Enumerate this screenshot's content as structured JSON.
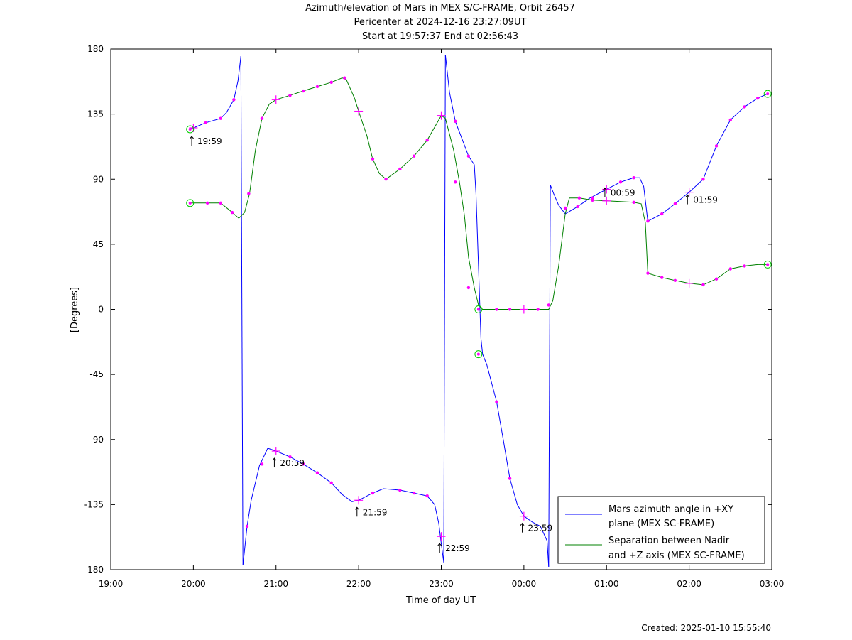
{
  "page": {
    "title_line1": "Azimuth/elevation of Mars in MEX S/C-FRAME,  Orbit 26457",
    "title_line2": "Pericenter at 2024-12-16 23:27:09UT",
    "title_line3": "Start at 19:57:37 End at 02:56:43",
    "created": "Created: 2025-01-10 15:55:40"
  },
  "chart_data": {
    "type": "line",
    "xlabel": "Time of day UT",
    "ylabel": "[Degrees]",
    "xlim_hours": [
      19,
      27
    ],
    "ylim": [
      -180,
      180
    ],
    "x_ticks": [
      "19:00",
      "20:00",
      "21:00",
      "22:00",
      "23:00",
      "00:00",
      "01:00",
      "02:00",
      "03:00"
    ],
    "y_ticks": [
      180,
      135,
      90,
      45,
      0,
      -45,
      -90,
      -135,
      -180
    ],
    "grid": false,
    "legend_position": "bottom-right",
    "colors": {
      "azimuth": "#0000ff",
      "separation": "#008000",
      "marker": "#ff00ff",
      "endpoint": "#00cc00"
    },
    "series": [
      {
        "name": "Mars azimuth angle in +XY plane (MEX SC-FRAME)",
        "legend_line1": "Mars azimuth angle in +XY",
        "legend_line2": "plane (MEX SC-FRAME)",
        "color": "#0000ff",
        "segments": [
          [
            [
              19.96,
              124.5
            ],
            [
              20.0,
              125.5
            ],
            [
              20.15,
              129
            ],
            [
              20.33,
              132
            ],
            [
              20.4,
              136
            ],
            [
              20.49,
              145
            ],
            [
              20.54,
              158
            ],
            [
              20.575,
              175
            ]
          ],
          [
            [
              20.6,
              -177
            ],
            [
              20.65,
              -150
            ],
            [
              20.7,
              -132
            ],
            [
              20.8,
              -108
            ],
            [
              20.9,
              -96
            ],
            [
              21.0,
              -98
            ],
            [
              21.17,
              -102
            ],
            [
              21.33,
              -107
            ],
            [
              21.5,
              -113
            ],
            [
              21.67,
              -120
            ],
            [
              21.8,
              -128
            ],
            [
              21.92,
              -133
            ],
            [
              22.0,
              -132
            ],
            [
              22.17,
              -127
            ],
            [
              22.3,
              -124
            ],
            [
              22.5,
              -125
            ],
            [
              22.67,
              -127
            ],
            [
              22.83,
              -129
            ],
            [
              22.92,
              -135
            ],
            [
              22.97,
              -148
            ],
            [
              23.0,
              -162
            ],
            [
              23.03,
              -175
            ]
          ],
          [
            [
              23.05,
              176
            ],
            [
              23.1,
              150
            ],
            [
              23.17,
              130
            ],
            [
              23.25,
              118
            ],
            [
              23.33,
              106
            ],
            [
              23.4,
              100
            ],
            [
              23.42,
              80
            ],
            [
              23.45,
              30
            ],
            [
              23.48,
              -20
            ],
            [
              23.5,
              -31
            ],
            [
              23.55,
              -38
            ],
            [
              23.67,
              -64
            ],
            [
              23.75,
              -90
            ],
            [
              23.83,
              -117
            ],
            [
              23.92,
              -135
            ],
            [
              24.0,
              -143
            ],
            [
              24.1,
              -147
            ],
            [
              24.2,
              -150
            ],
            [
              24.28,
              -160
            ],
            [
              24.3,
              -178
            ]
          ],
          [
            [
              24.32,
              86
            ],
            [
              24.36,
              80
            ],
            [
              24.42,
              72
            ],
            [
              24.5,
              66
            ],
            [
              24.65,
              71
            ],
            [
              24.8,
              77
            ],
            [
              25.0,
              83
            ],
            [
              25.17,
              88
            ],
            [
              25.33,
              91
            ],
            [
              25.4,
              91
            ],
            [
              25.45,
              85
            ],
            [
              25.5,
              61
            ],
            [
              25.67,
              66
            ],
            [
              25.83,
              73
            ],
            [
              26.0,
              81
            ],
            [
              26.17,
              90
            ],
            [
              26.33,
              113
            ],
            [
              26.5,
              131
            ],
            [
              26.67,
              140
            ],
            [
              26.83,
              146
            ],
            [
              26.95,
              149
            ]
          ]
        ]
      },
      {
        "name": "Separation between Nadir and +Z axis (MEX SC-FRAME)",
        "legend_line1": "Separation between Nadir",
        "legend_line2": "and +Z axis (MEX SC-FRAME)",
        "color": "#008000",
        "segments": [
          [
            [
              19.96,
              73.5
            ],
            [
              20.0,
              73.5
            ],
            [
              20.17,
              73.5
            ],
            [
              20.33,
              73.5
            ],
            [
              20.45,
              68
            ],
            [
              20.55,
              63
            ],
            [
              20.62,
              67
            ],
            [
              20.68,
              80
            ],
            [
              20.75,
              110
            ],
            [
              20.83,
              132
            ],
            [
              20.92,
              142
            ],
            [
              21.0,
              145
            ],
            [
              21.17,
              148
            ],
            [
              21.33,
              151
            ],
            [
              21.5,
              154
            ],
            [
              21.67,
              157
            ],
            [
              21.8,
              160
            ],
            [
              21.85,
              159
            ],
            [
              21.95,
              146
            ],
            [
              22.0,
              137
            ],
            [
              22.1,
              120
            ],
            [
              22.17,
              104
            ],
            [
              22.25,
              94
            ],
            [
              22.33,
              90
            ],
            [
              22.5,
              97
            ],
            [
              22.67,
              106
            ],
            [
              22.83,
              117
            ],
            [
              23.0,
              134
            ],
            [
              23.05,
              132
            ],
            [
              23.15,
              110
            ],
            [
              23.22,
              88
            ],
            [
              23.28,
              65
            ],
            [
              23.33,
              36
            ],
            [
              23.4,
              15
            ],
            [
              23.45,
              3
            ],
            [
              23.5,
              0
            ],
            [
              23.67,
              0
            ],
            [
              24.0,
              0
            ],
            [
              24.3,
              0
            ],
            [
              24.35,
              6
            ],
            [
              24.42,
              30
            ],
            [
              24.5,
              66
            ],
            [
              24.55,
              77
            ],
            [
              24.67,
              77
            ],
            [
              24.83,
              75.5
            ],
            [
              25.0,
              75
            ],
            [
              25.17,
              74.5
            ],
            [
              25.33,
              74
            ],
            [
              25.42,
              73
            ],
            [
              25.47,
              60
            ],
            [
              25.5,
              25
            ],
            [
              25.67,
              22
            ],
            [
              25.83,
              20
            ],
            [
              26.0,
              18
            ],
            [
              26.17,
              17
            ],
            [
              26.33,
              21
            ],
            [
              26.5,
              28
            ],
            [
              26.67,
              30
            ],
            [
              26.83,
              31
            ],
            [
              26.95,
              31
            ]
          ]
        ]
      }
    ],
    "dot_markers": {
      "azimuth": [
        [
          20.15,
          129
        ],
        [
          20.33,
          132
        ],
        [
          20.49,
          145
        ],
        [
          20.65,
          -150
        ],
        [
          20.83,
          -107
        ],
        [
          21.17,
          -102
        ],
        [
          21.33,
          -107
        ],
        [
          21.5,
          -113
        ],
        [
          21.67,
          -120
        ],
        [
          22.17,
          -127
        ],
        [
          22.5,
          -125
        ],
        [
          22.67,
          -127
        ],
        [
          22.83,
          -129
        ],
        [
          23.17,
          130
        ],
        [
          23.33,
          106
        ],
        [
          23.67,
          -64
        ],
        [
          23.83,
          -117
        ],
        [
          24.3,
          3
        ],
        [
          24.65,
          71
        ],
        [
          24.83,
          77
        ],
        [
          25.17,
          88
        ],
        [
          25.33,
          91
        ],
        [
          25.5,
          61
        ],
        [
          25.67,
          66
        ],
        [
          25.83,
          73
        ],
        [
          26.17,
          90
        ],
        [
          26.33,
          113
        ],
        [
          26.5,
          131
        ],
        [
          26.67,
          140
        ],
        [
          26.83,
          146
        ]
      ],
      "separation": [
        [
          20.17,
          73.5
        ],
        [
          20.33,
          73.5
        ],
        [
          20.47,
          67
        ],
        [
          20.67,
          80
        ],
        [
          20.83,
          132
        ],
        [
          21.17,
          148
        ],
        [
          21.33,
          151
        ],
        [
          21.5,
          154
        ],
        [
          21.67,
          157
        ],
        [
          21.83,
          160
        ],
        [
          22.17,
          104
        ],
        [
          22.33,
          90
        ],
        [
          22.5,
          97
        ],
        [
          22.67,
          106
        ],
        [
          22.83,
          117
        ],
        [
          23.17,
          88
        ],
        [
          23.33,
          15
        ],
        [
          23.67,
          0
        ],
        [
          23.83,
          0
        ],
        [
          24.17,
          0
        ],
        [
          24.5,
          70
        ],
        [
          24.67,
          77
        ],
        [
          24.83,
          75.5
        ],
        [
          25.33,
          74
        ],
        [
          25.5,
          25
        ],
        [
          25.67,
          22
        ],
        [
          25.83,
          20
        ],
        [
          26.17,
          17
        ],
        [
          26.33,
          21
        ],
        [
          26.5,
          28
        ],
        [
          26.67,
          30
        ]
      ]
    },
    "plus_markers": [
      [
        20.0,
        125.5
      ],
      [
        21.0,
        145
      ],
      [
        22.0,
        137
      ],
      [
        23.0,
        134
      ],
      [
        21.0,
        -98
      ],
      [
        22.0,
        -132
      ],
      [
        23.0,
        -157
      ],
      [
        24.0,
        -143
      ],
      [
        25.0,
        83
      ],
      [
        26.0,
        81
      ],
      [
        25.0,
        75
      ],
      [
        26.0,
        18
      ],
      [
        24.0,
        0
      ]
    ],
    "circle_markers": [
      [
        19.96,
        124.5
      ],
      [
        19.96,
        73.5
      ],
      [
        23.45,
        0
      ],
      [
        23.45,
        -31
      ],
      [
        26.95,
        149
      ],
      [
        26.95,
        31
      ]
    ],
    "time_annotations": [
      {
        "label": "19:59",
        "x": 19.98,
        "y": 124.5,
        "dy": 10
      },
      {
        "label": "20:59",
        "x": 20.98,
        "y": -98,
        "dy": 10
      },
      {
        "label": "21:59",
        "x": 21.98,
        "y": -132,
        "dy": 10
      },
      {
        "label": "22:59",
        "x": 22.98,
        "y": -157,
        "dy": 10
      },
      {
        "label": "23:59",
        "x": 23.98,
        "y": -143,
        "dy": 10
      },
      {
        "label": "00:59",
        "x": 24.98,
        "y": 83,
        "dy": -2
      },
      {
        "label": "01:59",
        "x": 25.98,
        "y": 81,
        "dy": 4
      }
    ]
  }
}
